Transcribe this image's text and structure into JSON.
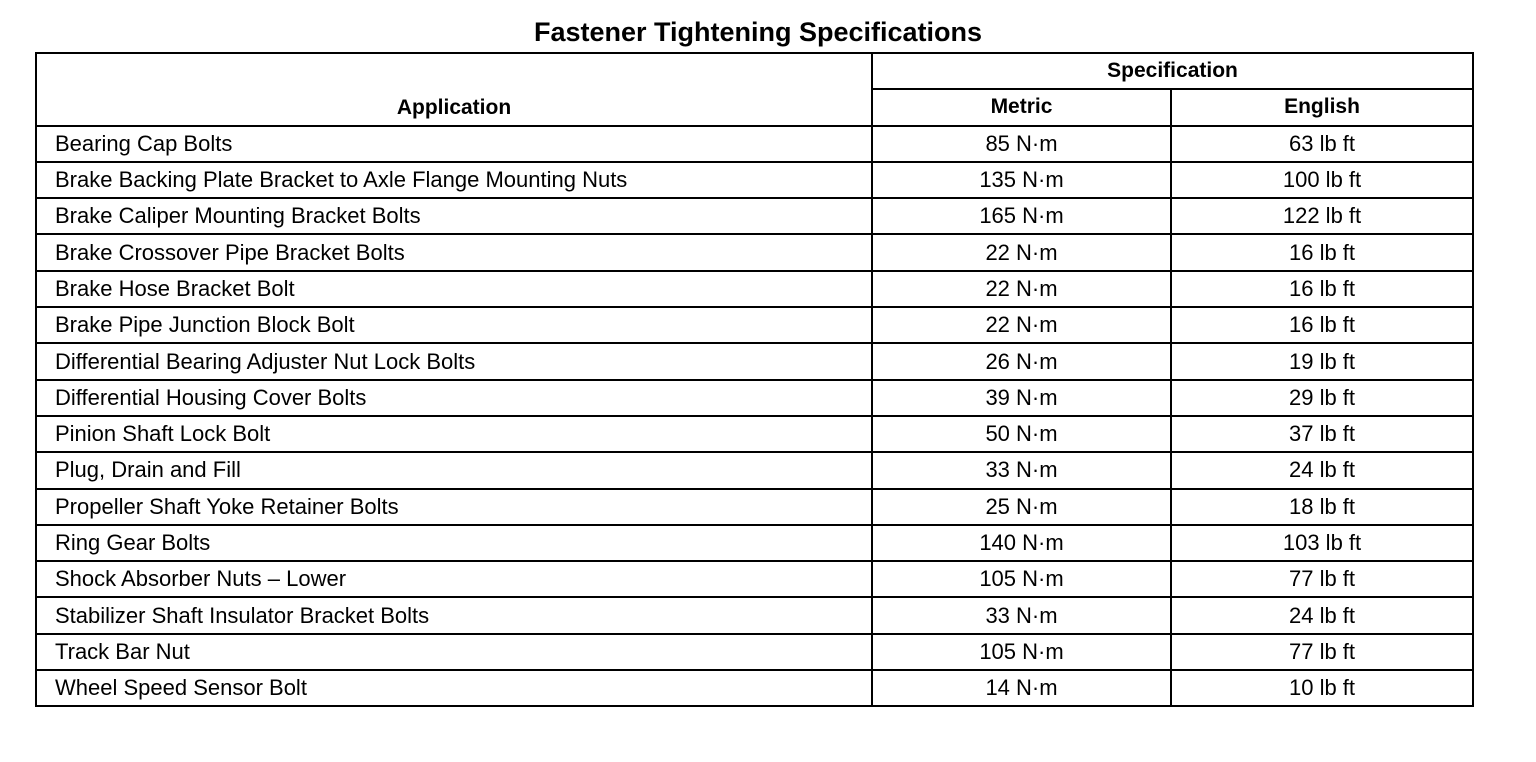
{
  "title": "Fastener Tightening Specifications",
  "headers": {
    "application": "Application",
    "specification": "Specification",
    "metric": "Metric",
    "english": "English"
  },
  "rows": [
    {
      "application": "Bearing Cap Bolts",
      "metric": "85 N·m",
      "english": "63 lb ft"
    },
    {
      "application": "Brake Backing Plate Bracket to Axle Flange Mounting Nuts",
      "metric": "135 N·m",
      "english": "100 lb ft"
    },
    {
      "application": "Brake Caliper Mounting Bracket Bolts",
      "metric": "165 N·m",
      "english": "122 lb ft"
    },
    {
      "application": "Brake Crossover Pipe Bracket Bolts",
      "metric": "22 N·m",
      "english": "16 lb ft"
    },
    {
      "application": "Brake Hose Bracket Bolt",
      "metric": "22 N·m",
      "english": "16 lb ft"
    },
    {
      "application": "Brake Pipe Junction Block Bolt",
      "metric": "22 N·m",
      "english": "16 lb ft"
    },
    {
      "application": "Differential Bearing Adjuster Nut Lock Bolts",
      "metric": "26 N·m",
      "english": "19 lb ft"
    },
    {
      "application": "Differential Housing Cover Bolts",
      "metric": "39 N·m",
      "english": "29 lb ft"
    },
    {
      "application": "Pinion Shaft Lock Bolt",
      "metric": "50 N·m",
      "english": "37 lb ft"
    },
    {
      "application": "Plug, Drain and Fill",
      "metric": "33 N·m",
      "english": "24 lb ft"
    },
    {
      "application": "Propeller Shaft Yoke Retainer Bolts",
      "metric": "25 N·m",
      "english": "18 lb ft"
    },
    {
      "application": "Ring Gear Bolts",
      "metric": "140 N·m",
      "english": "103 lb ft"
    },
    {
      "application": "Shock Absorber Nuts – Lower",
      "metric": "105 N·m",
      "english": "77 lb ft"
    },
    {
      "application": "Stabilizer Shaft Insulator Bracket Bolts",
      "metric": "33 N·m",
      "english": "24 lb ft"
    },
    {
      "application": "Track Bar Nut",
      "metric": "105 N·m",
      "english": "77 lb ft"
    },
    {
      "application": "Wheel Speed Sensor Bolt",
      "metric": "14 N·m",
      "english": "10 lb ft"
    }
  ]
}
